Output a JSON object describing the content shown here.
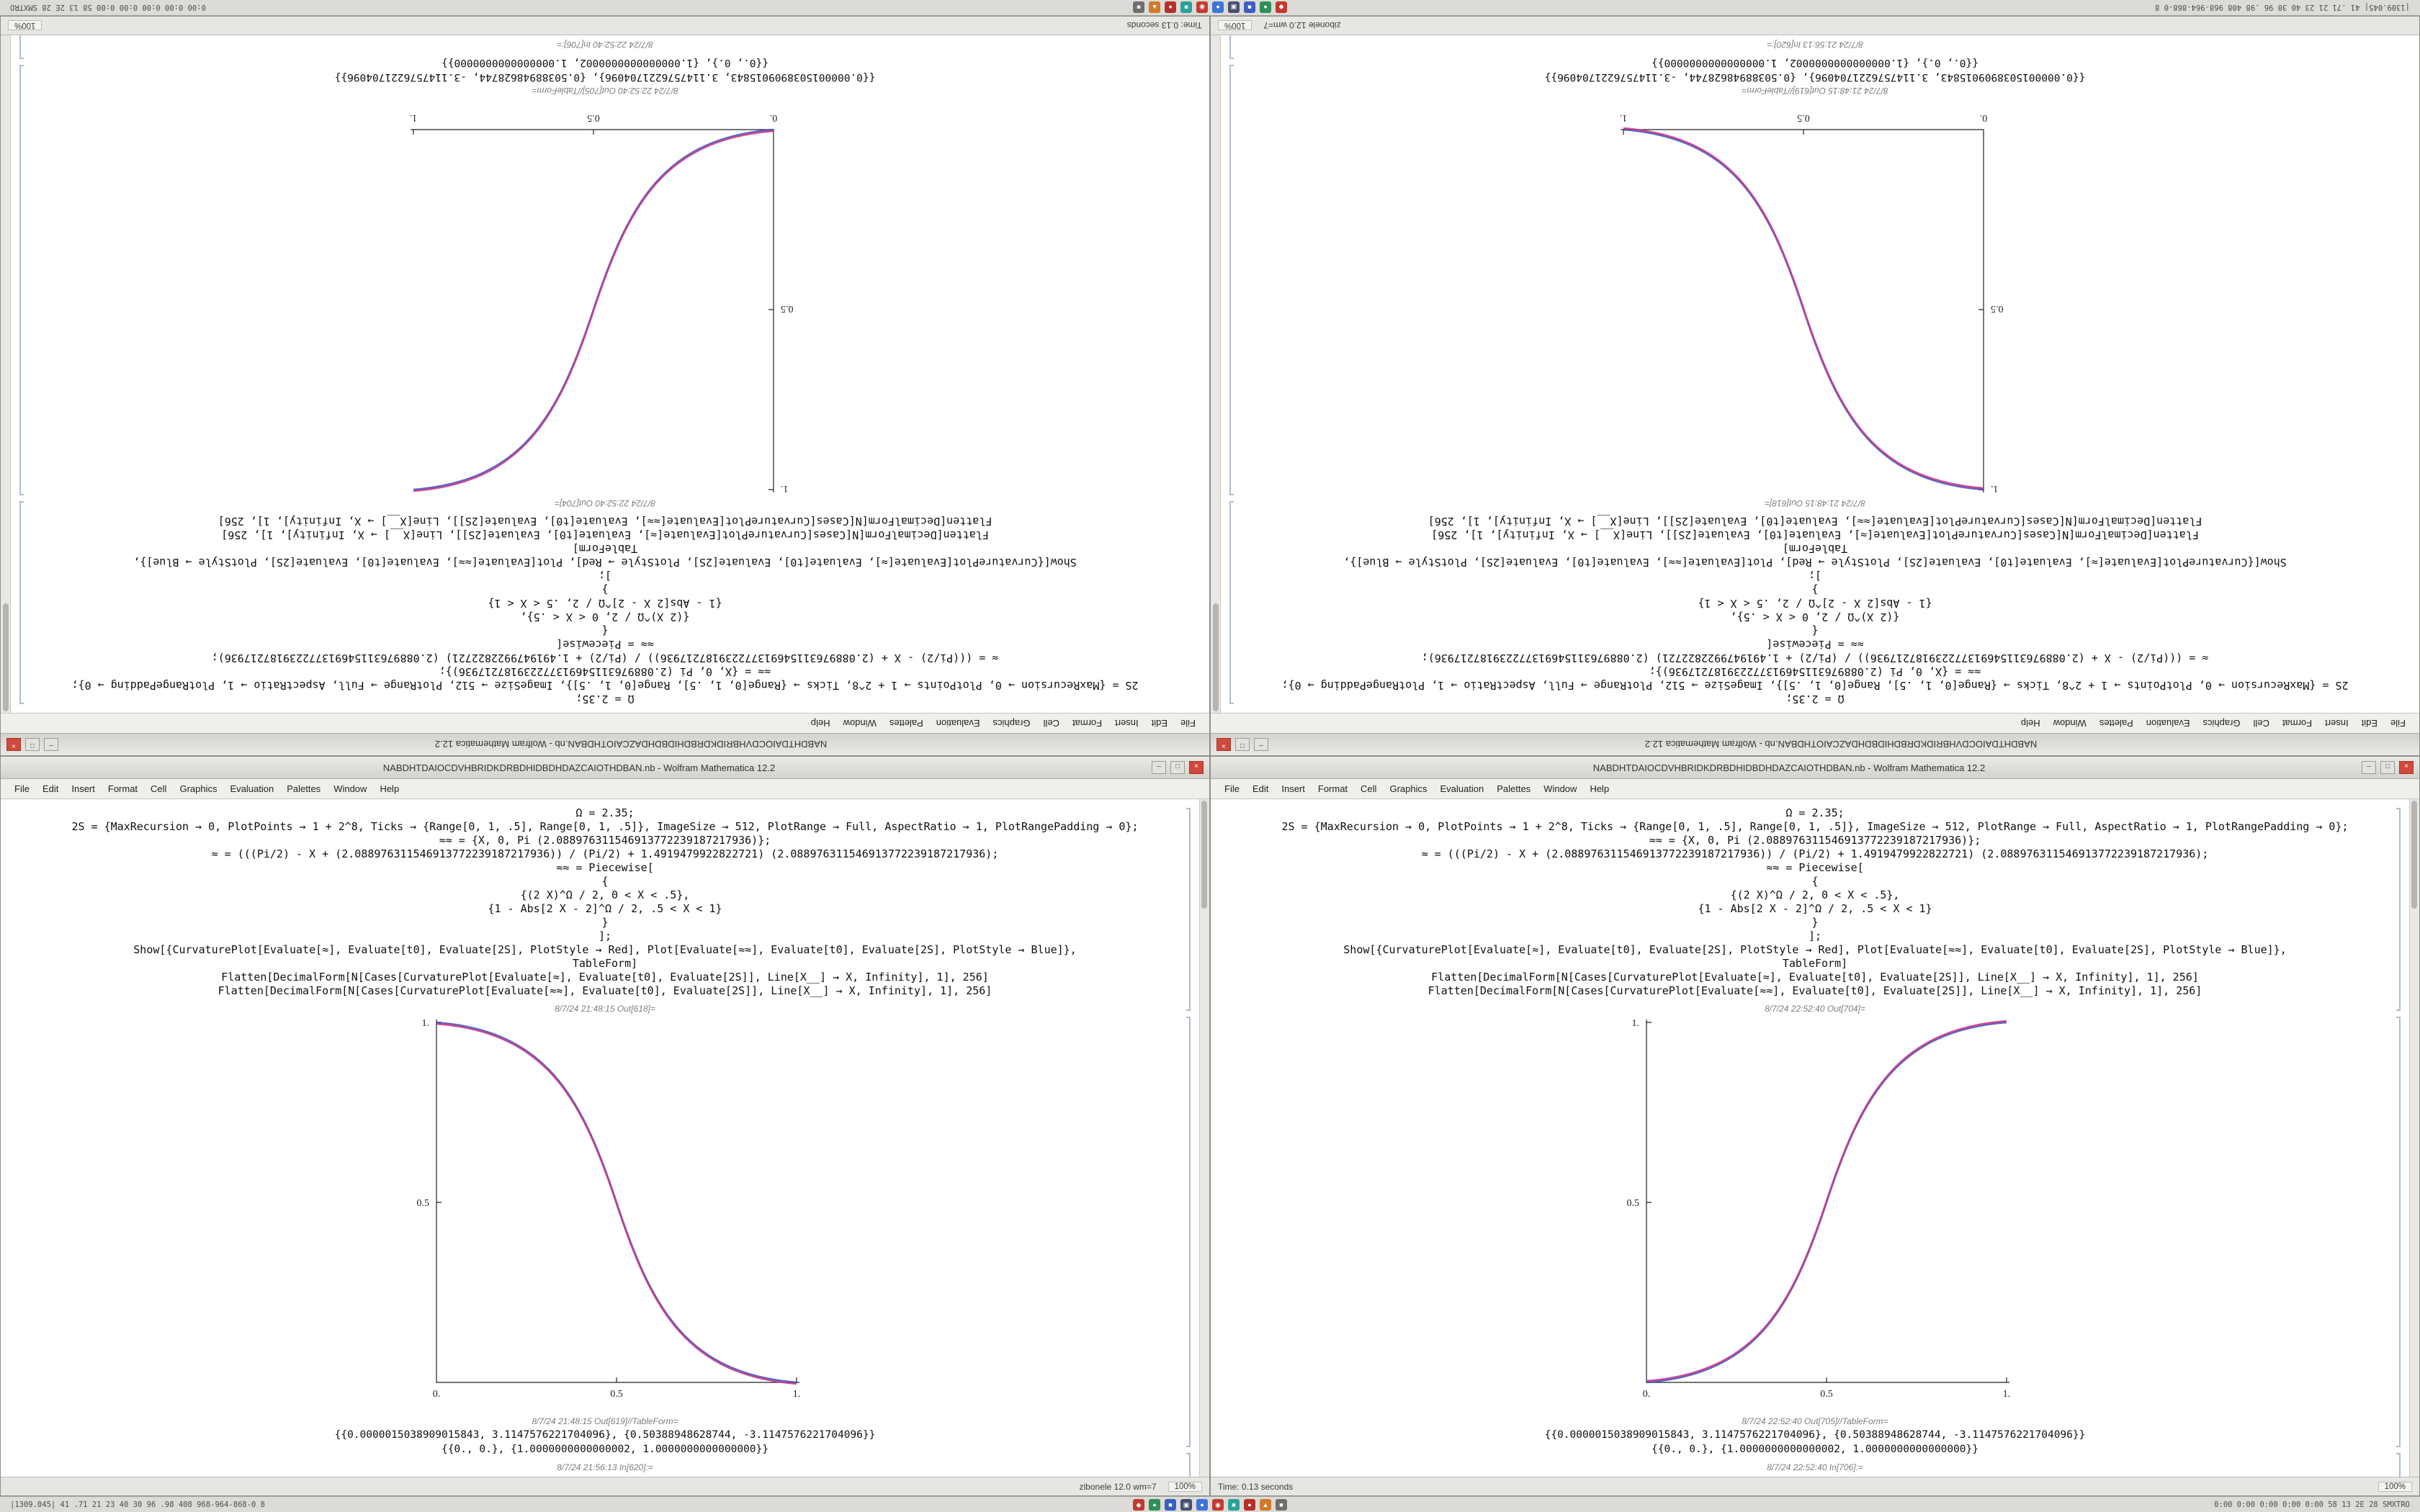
{
  "desktop": {
    "window_buttons": {
      "minimize": "–",
      "maximize": "□",
      "close": "×"
    },
    "taskbar": {
      "left_text": "|1309.045|  41 .71 21 23 40 30 96 .98 408 968-964-868-0 8",
      "right_text": "0:00 0:00 0:00 0:00 0:00 58 13 2E 28 SMXTRO",
      "tray_icons": [
        {
          "name": "tray-icon-red-1",
          "color": "#c03a2e",
          "glyph": "◆"
        },
        {
          "name": "tray-icon-green",
          "color": "#2e8f57",
          "glyph": "●"
        },
        {
          "name": "tray-icon-blue-1",
          "color": "#3a5fc0",
          "glyph": "■"
        },
        {
          "name": "tray-icon-navy",
          "color": "#474f6e",
          "glyph": "▣"
        },
        {
          "name": "tray-icon-blue-2",
          "color": "#3d74d8",
          "glyph": "●"
        },
        {
          "name": "tray-icon-red-2",
          "color": "#c23b2e",
          "glyph": "◉"
        },
        {
          "name": "tray-icon-teal",
          "color": "#2aa198",
          "glyph": "■"
        },
        {
          "name": "tray-icon-red-3",
          "color": "#b5302a",
          "glyph": "●"
        },
        {
          "name": "tray-icon-orange",
          "color": "#d07a2a",
          "glyph": "▲"
        },
        {
          "name": "tray-icon-gray",
          "color": "#6f6f6f",
          "glyph": "■"
        }
      ]
    },
    "windows": {
      "left": {
        "title": "NABDHTDAIOCDVHBRIDKDRBDHIDBDHDAZCAIOTHDBAN.nb - Wolfram Mathematica 12.2",
        "menu": [
          "File",
          "Edit",
          "Insert",
          "Format",
          "Cell",
          "Graphics",
          "Evaluation",
          "Palettes",
          "Window",
          "Help"
        ],
        "cells": {
          "code_lines": [
            "Ω = 2.35;",
            "2S = {MaxRecursion → 0, PlotPoints → 1 + 2^8, Ticks → {Range[0, 1, .5], Range[0, 1, .5]}, ImageSize → 512, PlotRange → Full, AspectRatio → 1, PlotRangePadding → 0};",
            "≈≈ = {X, 0, Pi (2.088976311546913772239187217936)};",
            "≈ = (((Pi/2) - X + (2.088976311546913772239187217936)) / (Pi/2) + 1.4919479922822721) (2.088976311546913772239187217936);",
            "≈≈ = Piecewise[",
            "{",
            "{(2 X)^Ω / 2, 0 < X < .5},",
            "{1 - Abs[2 X - 2]^Ω / 2, .5 < X < 1}",
            "}",
            "];",
            "Show[{CurvaturePlot[Evaluate[≈], Evaluate[t0], Evaluate[2S], PlotStyle → Red], Plot[Evaluate[≈≈], Evaluate[t0], Evaluate[2S], PlotStyle → Blue]},",
            "TableForm]",
            "Flatten[DecimalForm[N[Cases[CurvaturePlot[Evaluate[≈], Evaluate[t0], Evaluate[2S]], Line[X__] → X, Infinity], 1], 256]",
            "Flatten[DecimalForm[N[Cases[CurvaturePlot[Evaluate[≈≈], Evaluate[t0], Evaluate[2S]], Line[X__] → X, Infinity], 1], 256]"
          ],
          "out_plot_label": "8/7/24 21:48:15 Out[618]=",
          "out_table_label": "8/7/24 21:48:15 Out[619]//TableForm=",
          "table_rows": [
            "{{0.0000015038909015843, 3.1147576221704096}, {0.50388948628744, -3.1147576221704096}}",
            "{{0., 0.}, {1.0000000000000002, 1.0000000000000000}}"
          ],
          "bottom_label": "8/7/24 21:56:13 In[620]:="
        },
        "plot": {
          "type": "line",
          "shape": "descending sigmoid from (0,1) to (1,0)",
          "x_range": [
            0,
            1
          ],
          "y_range": [
            0,
            1
          ],
          "x_ticks": [
            "0.",
            "0.5",
            "1."
          ],
          "y_ticks": [
            "1.",
            "0.5"
          ],
          "series_colors": {
            "red": "#c93a86",
            "blue": "#3b4cc0"
          }
        },
        "status": {
          "info": "zibonele 12.0 wm=7",
          "zoom": "100%"
        }
      },
      "right": {
        "title": "NABDHTDAIOCDVHBRIDKDRBDHIDBDHDAZCAIOTHDBAN.nb - Wolfram Mathematica 12.2",
        "menu": [
          "File",
          "Edit",
          "Insert",
          "Format",
          "Cell",
          "Graphics",
          "Evaluation",
          "Palettes",
          "Window",
          "Help"
        ],
        "cells": {
          "code_lines": [
            "Ω = 2.35;",
            "2S = {MaxRecursion → 0, PlotPoints → 1 + 2^8, Ticks → {Range[0, 1, .5], Range[0, 1, .5]}, ImageSize → 512, PlotRange → Full, AspectRatio → 1, PlotRangePadding → 0};",
            "≈≈ = {X, 0, Pi (2.088976311546913772239187217936)};",
            "≈ = (((Pi/2) - X + (2.088976311546913772239187217936)) / (Pi/2) + 1.4919479922822721) (2.088976311546913772239187217936);",
            "≈≈ = Piecewise[",
            "{",
            "{(2 X)^Ω / 2, 0 < X < .5},",
            "{1 - Abs[2 X - 2]^Ω / 2, .5 < X < 1}",
            "}",
            "];",
            "Show[{CurvaturePlot[Evaluate[≈], Evaluate[t0], Evaluate[2S], PlotStyle → Red], Plot[Evaluate[≈≈], Evaluate[t0], Evaluate[2S], PlotStyle → Blue]},",
            "TableForm]",
            "Flatten[DecimalForm[N[Cases[CurvaturePlot[Evaluate[≈], Evaluate[t0], Evaluate[2S]], Line[X__] → X, Infinity], 1], 256]",
            "Flatten[DecimalForm[N[Cases[CurvaturePlot[Evaluate[≈≈], Evaluate[t0], Evaluate[2S]], Line[X__] → X, Infinity], 1], 256]"
          ],
          "out_plot_label": "8/7/24 22:52:40 Out[704]=",
          "out_table_label": "8/7/24 22:52:40 Out[705]//TableForm=",
          "table_rows": [
            "{{0.0000015038909015843, 3.1147576221704096}, {0.50388948628744, -3.1147576221704096}}",
            "{{0., 0.}, {1.0000000000000002, 1.0000000000000000}}"
          ],
          "bottom_label": "8/7/24 22:52:40 In[706]:="
        },
        "plot": {
          "type": "line",
          "shape": "ascending sigmoid from (0,0) to (1,1)",
          "x_range": [
            0,
            1
          ],
          "y_range": [
            0,
            1
          ],
          "x_ticks": [
            "0.",
            "0.5",
            "1."
          ],
          "y_ticks": [
            "1.",
            "0.5"
          ],
          "series_colors": {
            "red": "#c93a86",
            "blue": "#3b4cc0"
          }
        },
        "status": {
          "info": "Time: 0.13 seconds",
          "zoom": "100%"
        }
      }
    }
  }
}
